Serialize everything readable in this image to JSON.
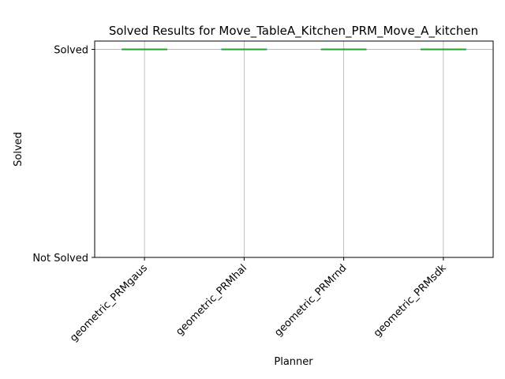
{
  "chart_data": {
    "type": "box",
    "title": "Solved Results for Move_TableA_Kitchen_PRM_Move_A_kitchen",
    "xlabel": "Planner",
    "ylabel": "Solved",
    "categories": [
      "geometric_PRMgaus",
      "geometric_PRMhal",
      "geometric_PRMrnd",
      "geometric_PRMsdk"
    ],
    "values": [
      1,
      1,
      1,
      1
    ],
    "y_ticks": [
      {
        "value": 0,
        "label": "Not Solved"
      },
      {
        "value": 1,
        "label": "Solved"
      }
    ],
    "ylim": [
      0,
      1.04
    ],
    "grid": true,
    "colors": {
      "median": "#2ca02c",
      "box": "#1f77b4",
      "grid": "#b0b0b0"
    }
  }
}
